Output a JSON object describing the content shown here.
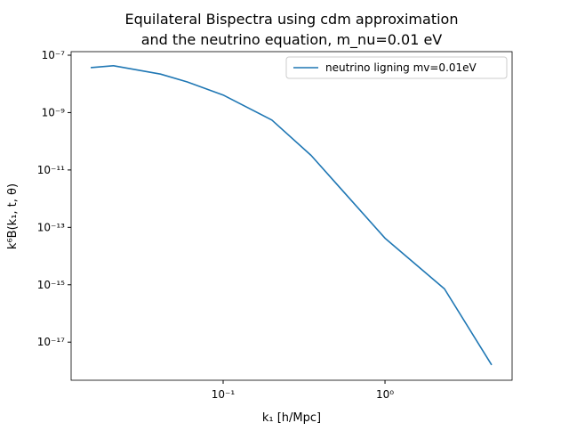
{
  "chart_data": {
    "type": "line",
    "title": [
      "Equilateral Bispectra using cdm approximation",
      "and the neutrino equation, m_nu=0.01 eV"
    ],
    "x_label": "k₁ [h/Mpc]",
    "y_label": "k⁶B(k₁, t, θ)",
    "x_scale": "log",
    "y_scale": "log",
    "xlim": [
      0.0115,
      6.1
    ],
    "ylim": [
      1.33e-07,
      4.7e-19
    ],
    "xticks": [
      {
        "value": 0.1,
        "label": "10⁻¹"
      },
      {
        "value": 1,
        "label": "10⁰"
      }
    ],
    "yticks": [
      {
        "value": 1e-07,
        "label": "10⁻⁷"
      },
      {
        "value": 1e-09,
        "label": "10⁻⁹"
      },
      {
        "value": 1e-11,
        "label": "10⁻¹¹"
      },
      {
        "value": 1e-13,
        "label": "10⁻¹³"
      },
      {
        "value": 1e-15,
        "label": "10⁻¹⁵"
      },
      {
        "value": 1e-17,
        "label": "10⁻¹⁷"
      }
    ],
    "legend": "upper right",
    "x": [
      0.0152,
      0.021,
      0.041,
      0.06,
      0.1,
      0.2,
      0.35,
      1.0,
      2.33,
      4.56
    ],
    "series": [
      {
        "name": "neutrino ligning mv=0.01eV",
        "color": "#1f77b4",
        "values": [
          3.7e-08,
          4.3e-08,
          2.2e-08,
          1.17e-08,
          4.1e-09,
          5.5e-10,
          3.2e-11,
          4.2e-14,
          7.2e-16,
          1.6e-18
        ]
      }
    ]
  }
}
